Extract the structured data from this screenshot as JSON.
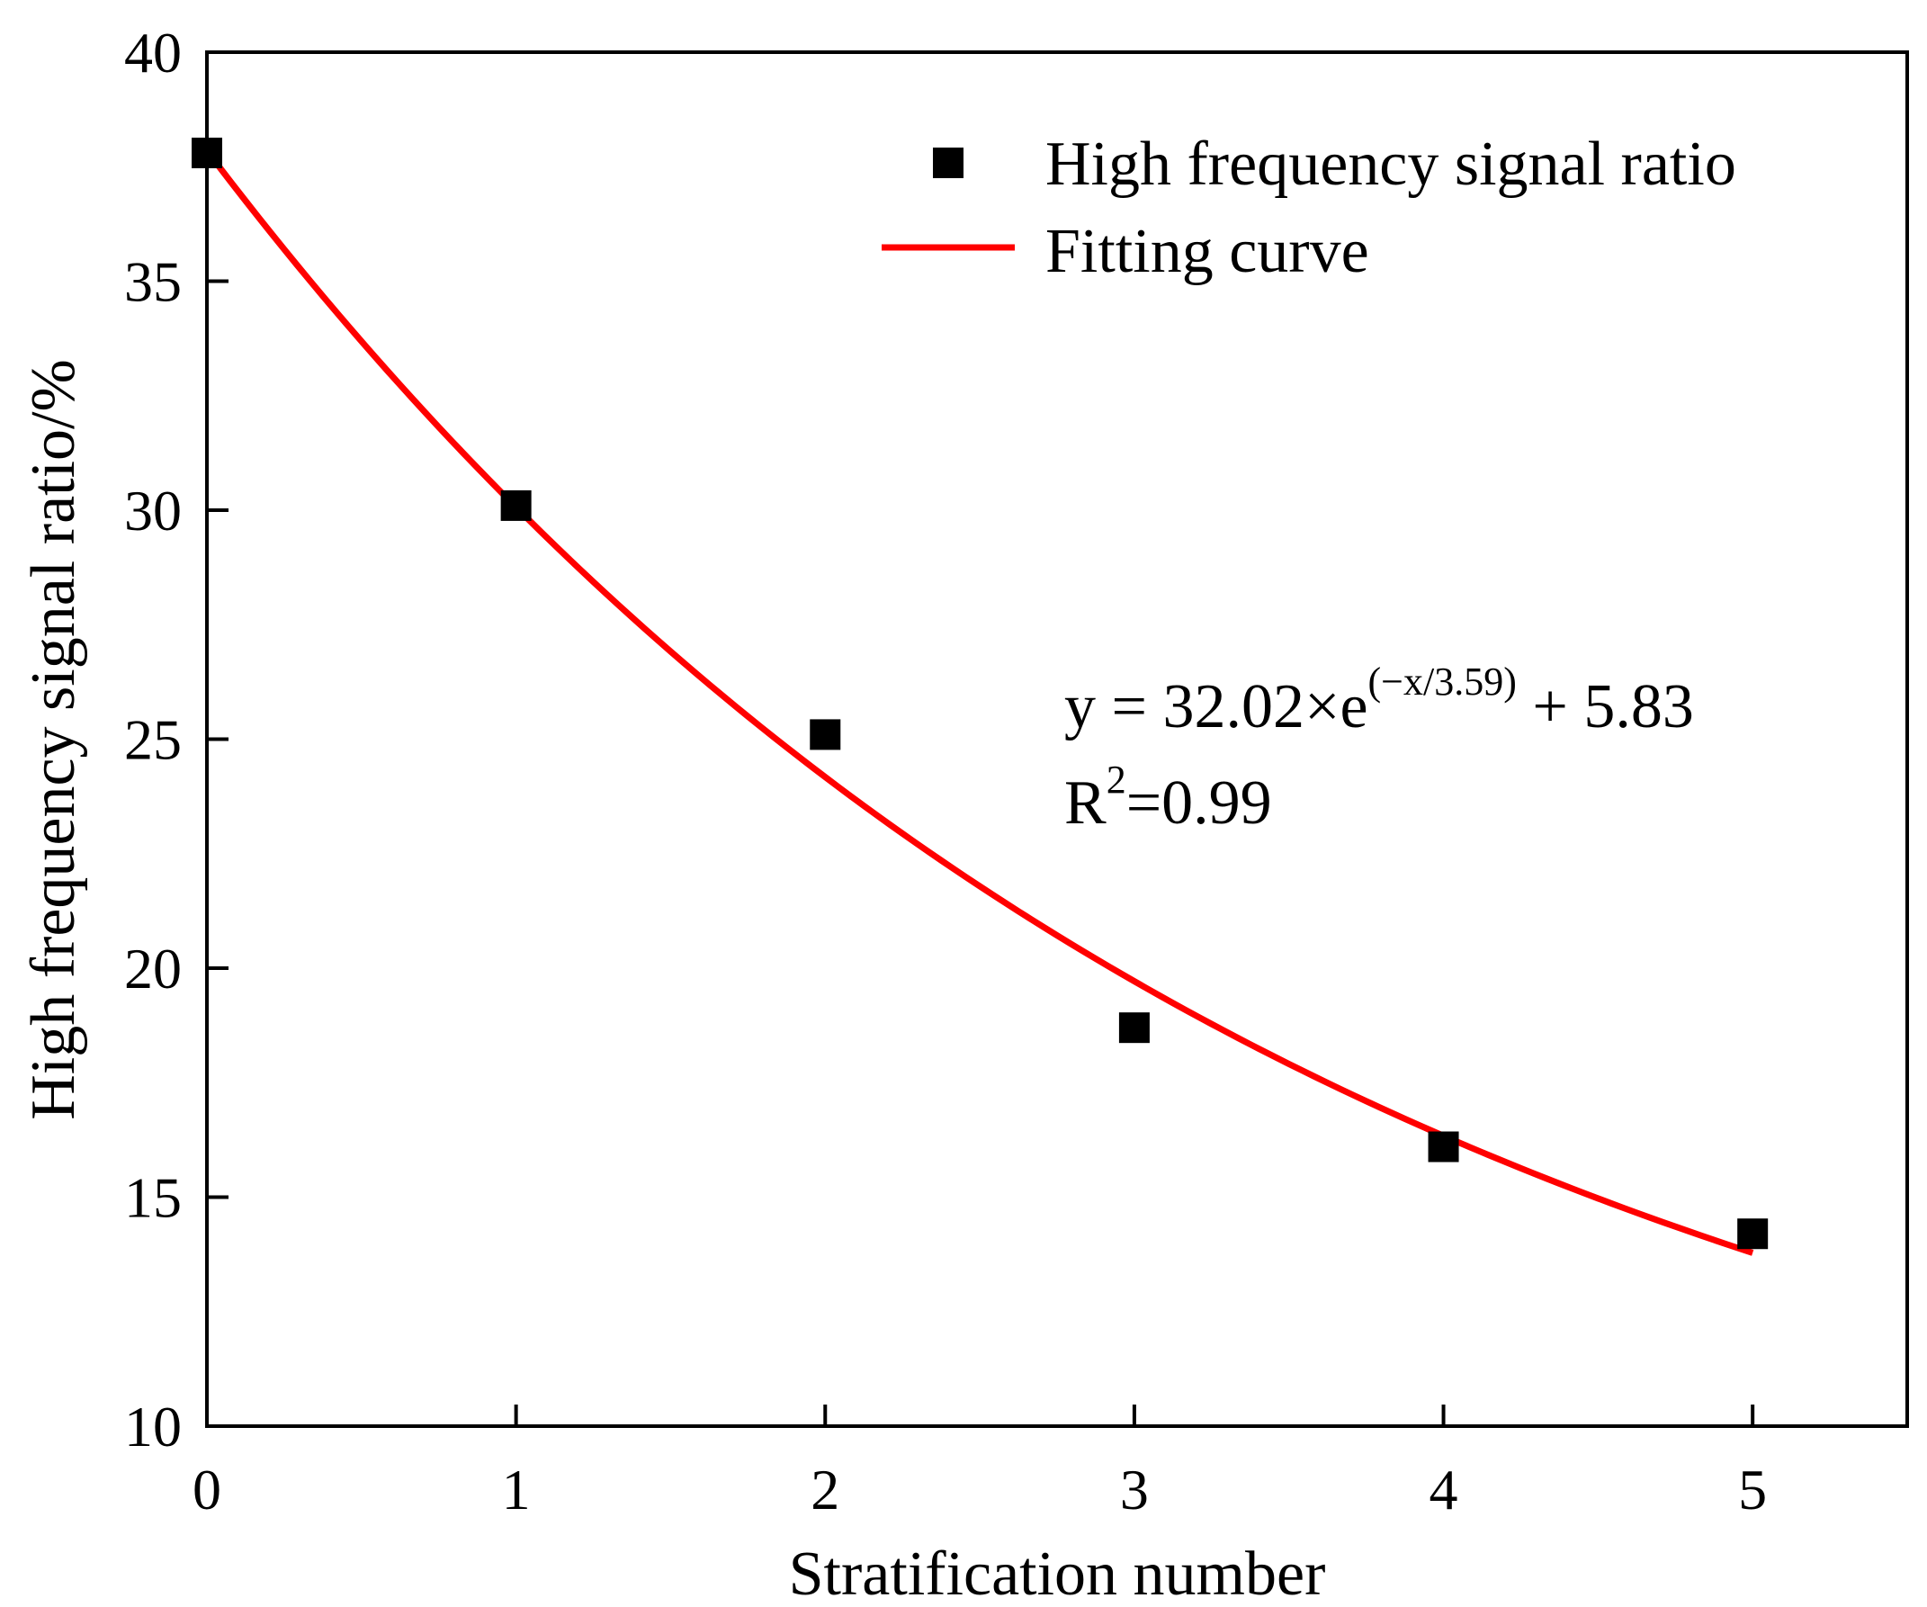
{
  "chart_data": {
    "type": "scatter",
    "title": "",
    "xlabel": "Stratification number",
    "ylabel": "High frequency signal ratio/%",
    "xlim": [
      0,
      5.5
    ],
    "ylim": [
      10,
      40
    ],
    "xticks": [
      0,
      1,
      2,
      3,
      4,
      5
    ],
    "yticks": [
      10,
      15,
      20,
      25,
      30,
      35,
      40
    ],
    "grid": false,
    "legend_position": "top-right",
    "series": [
      {
        "name": "High frequency signal ratio",
        "kind": "scatter",
        "marker": "square",
        "color": "#000000",
        "x": [
          0,
          1,
          2,
          3,
          4,
          5
        ],
        "y": [
          37.8,
          30.1,
          25.1,
          18.7,
          16.1,
          14.2
        ]
      },
      {
        "name": "Fitting curve",
        "kind": "line",
        "color": "#ff0000",
        "model": {
          "A": 32.02,
          "t": 3.59,
          "C": 5.83
        },
        "x_range": [
          0,
          5
        ]
      }
    ],
    "annotation": {
      "eq_prefix": "y = 32.02×e",
      "eq_exponent": "(−x/3.59)",
      "eq_suffix": " + 5.83",
      "r2_prefix": "R",
      "r2_sup": "2",
      "r2_suffix": "=0.99"
    }
  }
}
